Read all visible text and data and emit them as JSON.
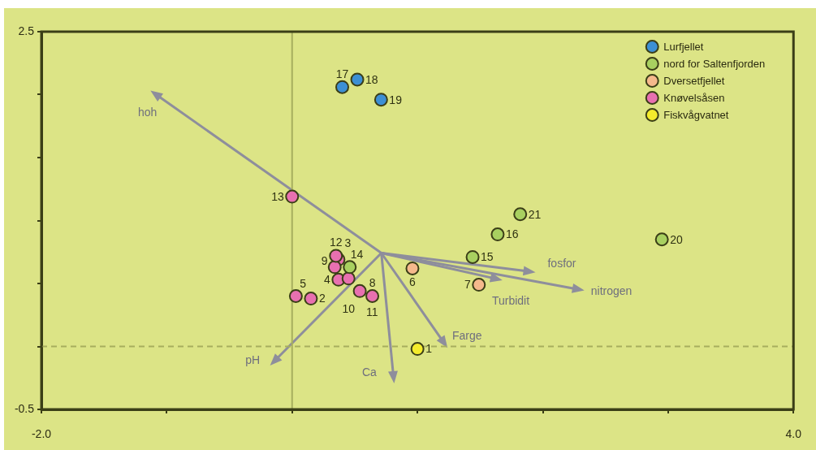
{
  "chart_data": {
    "type": "scatter",
    "xlim": [
      -2,
      4
    ],
    "xticks": [
      {
        "value": -2,
        "label": "-2.0"
      },
      {
        "value": -1,
        "label": null
      },
      {
        "value": 0,
        "label": null
      },
      {
        "value": 1,
        "label": null
      },
      {
        "value": 2,
        "label": null
      },
      {
        "value": 3,
        "label": null
      },
      {
        "value": 4,
        "label": "4.0"
      }
    ],
    "ylim": [
      -0.5,
      2.5
    ],
    "yticks": [
      {
        "value": -0.5,
        "label": "-0.5"
      },
      {
        "value": 0,
        "label": null
      },
      {
        "value": 0.5,
        "label": null
      },
      {
        "value": 1,
        "label": null
      },
      {
        "value": 1.5,
        "label": null
      },
      {
        "value": 2,
        "label": null
      },
      {
        "value": 2.5,
        "label": "2.5"
      }
    ],
    "legend": "top right",
    "marker": "circle",
    "ref_lines": [
      {
        "axis": "x",
        "value": 0,
        "color": "#a7ae5e",
        "line_style": "solid"
      },
      {
        "axis": "y",
        "value": 0,
        "color": "#a7ae5e",
        "line_style": "dashed"
      }
    ],
    "series": [
      {
        "name": "Lurfjellet",
        "color": "#3d8fd4",
        "x": [
          0.4,
          0.52,
          0.71
        ],
        "values": [
          2.06,
          2.12,
          1.96
        ]
      },
      {
        "name": "nord for Saltenfjorden",
        "color": "#a8d060",
        "x": [
          0.46,
          1.44,
          1.64,
          2.95,
          1.82
        ],
        "values": [
          0.63,
          0.71,
          0.89,
          0.85,
          1.05
        ]
      },
      {
        "name": "Dversetfjellet",
        "color": "#f5b98c",
        "x": [
          0.96,
          1.49
        ],
        "values": [
          0.62,
          0.49
        ]
      },
      {
        "name": "Knøvelsåsen",
        "color": "#e870b0",
        "x": [
          0.15,
          0.37,
          0.37,
          0.03,
          0.64,
          0.34,
          0.45,
          0.54,
          0.35,
          0.0
        ],
        "values": [
          0.38,
          0.69,
          0.53,
          0.4,
          0.4,
          0.63,
          0.54,
          0.44,
          0.72,
          1.19
        ]
      },
      {
        "name": "Fiskvågvatnet",
        "color": "#f4ec2c",
        "x": [
          1.0
        ],
        "values": [
          -0.02
        ]
      }
    ],
    "annotations": [
      "hoh",
      "pH",
      "Ca",
      "Farge",
      "fosfor",
      "nitrogen",
      "Turbidit",
      {
        "text": "17",
        "x": 0.4,
        "y": 2.06
      },
      {
        "text": "18",
        "x": 0.52,
        "y": 2.12
      },
      {
        "text": "19",
        "x": 0.71,
        "y": 1.96
      },
      {
        "text": "14",
        "x": 0.46,
        "y": 0.63
      },
      {
        "text": "15",
        "x": 1.44,
        "y": 0.71
      },
      {
        "text": "16",
        "x": 1.64,
        "y": 0.89
      },
      {
        "text": "20",
        "x": 2.95,
        "y": 0.85
      },
      {
        "text": "21",
        "x": 1.82,
        "y": 1.05
      },
      {
        "text": "6",
        "x": 0.96,
        "y": 0.62
      },
      {
        "text": "7",
        "x": 1.49,
        "y": 0.49
      },
      {
        "text": "2",
        "x": 0.15,
        "y": 0.38
      },
      {
        "text": "3",
        "x": 0.37,
        "y": 0.69
      },
      {
        "text": "4",
        "x": 0.37,
        "y": 0.53
      },
      {
        "text": "5",
        "x": 0.03,
        "y": 0.4
      },
      {
        "text": "8",
        "x": 0.64,
        "y": 0.4
      },
      {
        "text": "9",
        "x": 0.34,
        "y": 0.63
      },
      {
        "text": "10",
        "x": 0.45,
        "y": 0.54
      },
      {
        "text": "11",
        "x": 0.54,
        "y": 0.44
      },
      {
        "text": "12",
        "x": 0.35,
        "y": 0.72
      },
      {
        "text": "13",
        "x": 0.0,
        "y": 1.19
      },
      {
        "text": "1",
        "x": 1.0,
        "y": -0.02
      }
    ]
  }
}
